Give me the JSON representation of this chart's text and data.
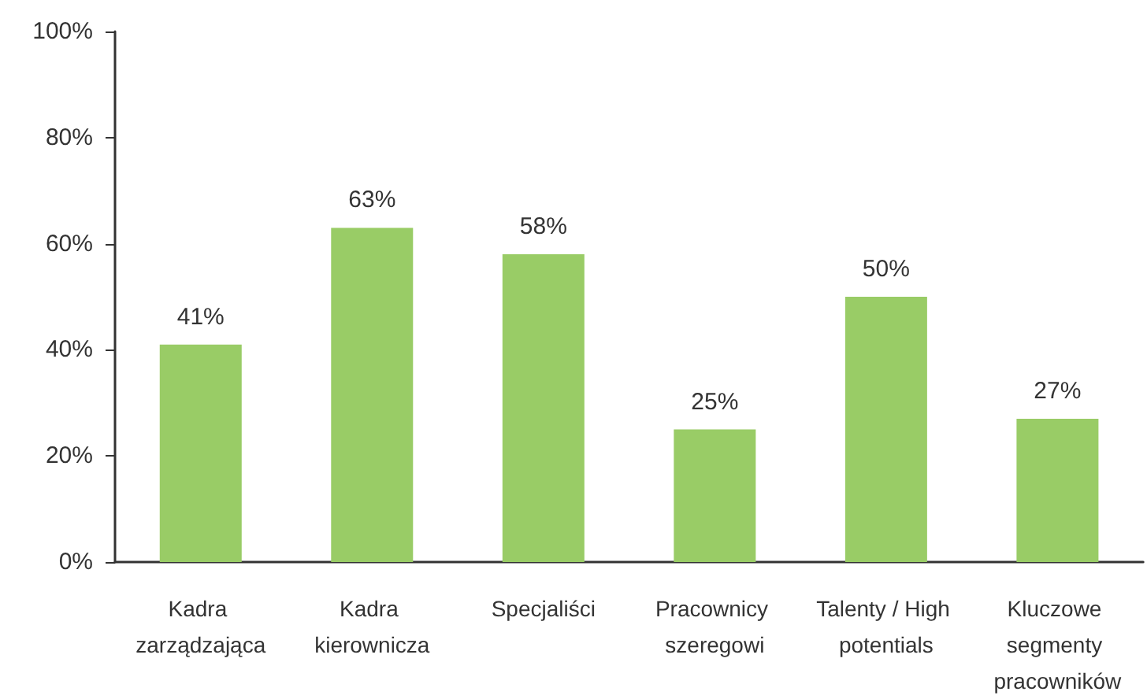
{
  "chart_data": {
    "type": "bar",
    "categories": [
      "Kadra zarządzająca",
      "Kadra kierownicza",
      "Specjaliści",
      "Pracownicy szeregowi",
      "Talenty / High potentials",
      "Kluczowe segmenty pracowników"
    ],
    "values": [
      41,
      63,
      58,
      25,
      50,
      27
    ],
    "value_labels": [
      "41%",
      "63%",
      "58%",
      "25%",
      "50%",
      "27%"
    ],
    "color": "#99cc66",
    "ylim": [
      0,
      100
    ],
    "yticks": [
      {
        "value": 0,
        "label": "0%"
      },
      {
        "value": 20,
        "label": "20%"
      },
      {
        "value": 40,
        "label": "40%"
      },
      {
        "value": 60,
        "label": "60%"
      },
      {
        "value": 80,
        "label": "80%"
      },
      {
        "value": 100,
        "label": "100%"
      }
    ],
    "grid": false
  }
}
